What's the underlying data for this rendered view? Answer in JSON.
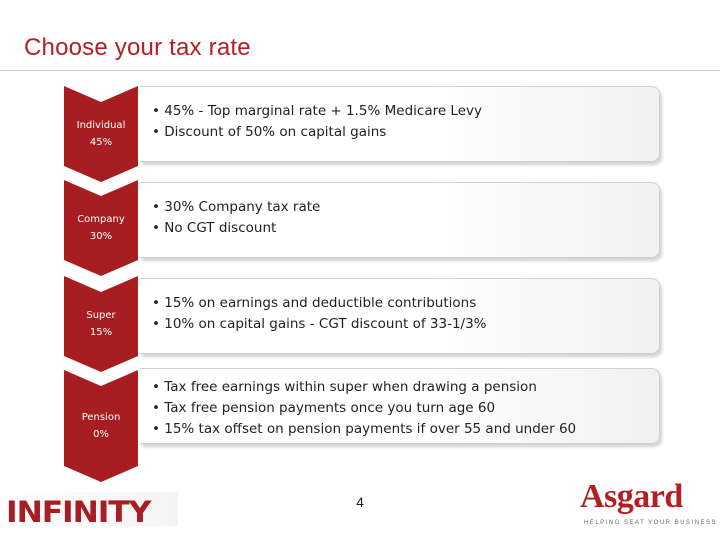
{
  "title": "Choose your tax rate",
  "tiers": [
    {
      "name": "Individual",
      "rate": "45%",
      "bullets": [
        "• 45% - Top marginal rate + 1.5% Medicare Levy",
        "• Discount of 50% on capital gains"
      ]
    },
    {
      "name": "Company",
      "rate": "30%",
      "bullets": [
        "• 30% Company tax rate",
        "• No CGT discount"
      ]
    },
    {
      "name": "Super",
      "rate": "15%",
      "bullets": [
        "• 15% on earnings and deductible contributions",
        "• 10% on capital gains - CGT discount of 33-1/3%"
      ]
    },
    {
      "name": "Pension",
      "rate": "0%",
      "bullets": [
        "• Tax free earnings within super when drawing a pension",
        "• Tax free pension payments once you turn age 60",
        "• 15% tax offset on pension payments if over 55 and under 60"
      ]
    }
  ],
  "page_number": "4",
  "logos": {
    "left": "INFINITY",
    "right": "Asgard",
    "right_tagline": "HELPING SEAT YOUR BUSINESS"
  },
  "colors": {
    "accent": "#a81d22",
    "title": "#b21f24"
  }
}
